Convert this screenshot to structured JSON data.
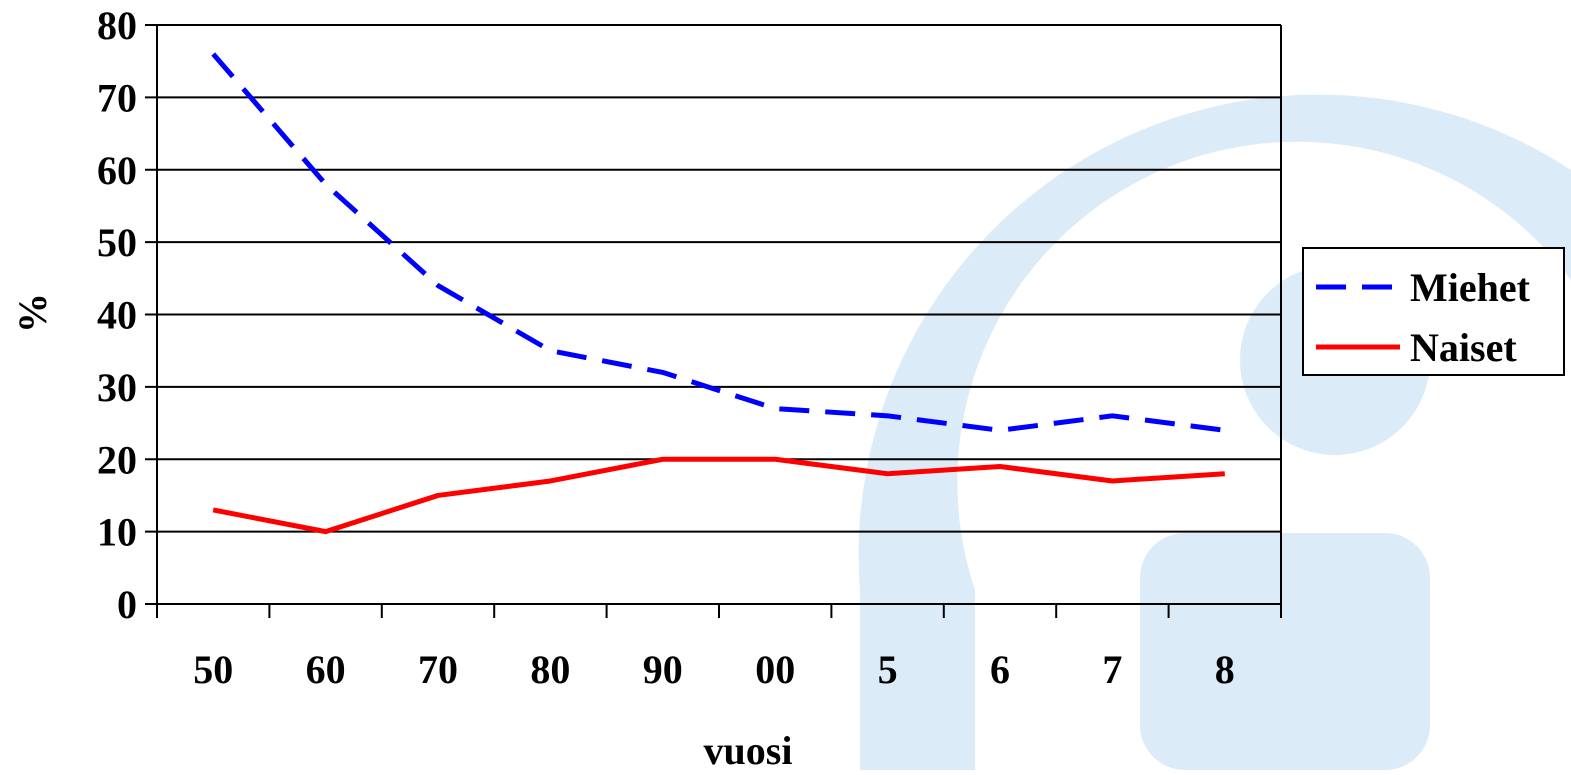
{
  "chart_data": {
    "type": "line",
    "title": "",
    "xlabel": "vuosi",
    "ylabel": "%",
    "categories": [
      "50",
      "60",
      "70",
      "80",
      "90",
      "00",
      "5",
      "6",
      "7",
      "8"
    ],
    "ylim": [
      0,
      80
    ],
    "yticks": [
      0,
      10,
      20,
      30,
      40,
      50,
      60,
      70,
      80
    ],
    "grid": true,
    "legend_position": "right",
    "series": [
      {
        "name": "Miehet",
        "values": [
          76,
          58,
          44,
          35,
          32,
          27,
          26,
          24,
          26,
          24
        ],
        "color": "#0000ff",
        "style": "dashed"
      },
      {
        "name": "Naiset",
        "values": [
          13,
          10,
          15,
          17,
          20,
          20,
          18,
          19,
          17,
          18
        ],
        "color": "#ff0000",
        "style": "solid"
      }
    ]
  },
  "background": {
    "accent_color": "#dcebf8"
  }
}
